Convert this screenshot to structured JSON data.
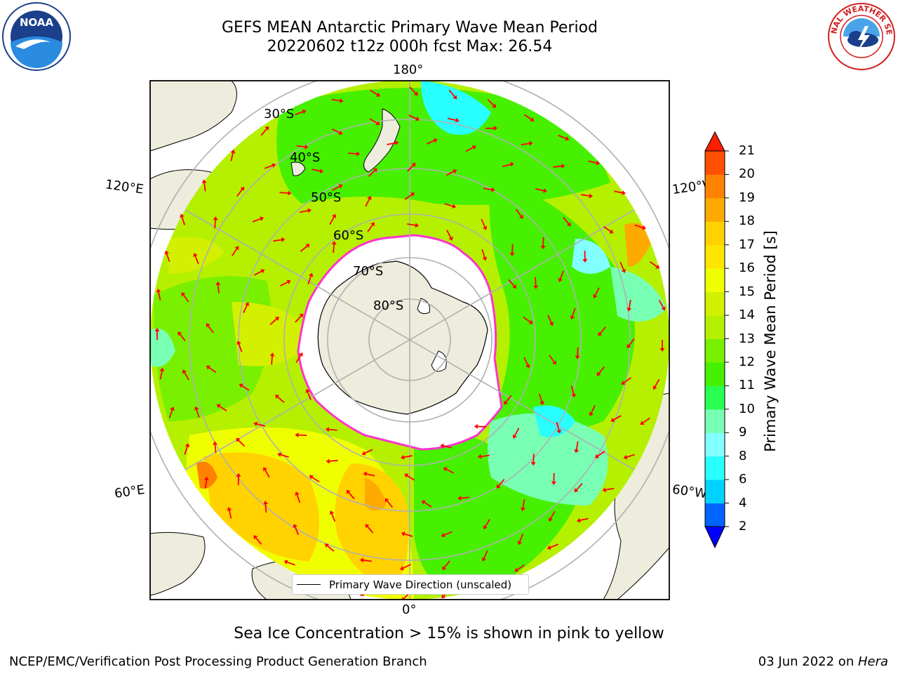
{
  "title": {
    "line1": "GEFS MEAN Antarctic Primary Wave Mean Period",
    "line2": "20220602 t12z 000h fcst   Max: 26.54"
  },
  "logos": {
    "noaa_text": "NOAA",
    "nws_text": "NATIONAL WEATHER SERVICE"
  },
  "map": {
    "projection": "south-polar-stereographic",
    "longitude_labels": {
      "top": "180°",
      "bottom": "0°",
      "upper_left": "120°E",
      "upper_right": "120°W",
      "lower_left": "60°E",
      "lower_right": "60°W"
    },
    "latitude_labels": [
      "30°S",
      "40°S",
      "50°S",
      "60°S",
      "70°S",
      "80°S"
    ],
    "legend_label": "Primary Wave Direction (unscaled)",
    "colors": {
      "land": "#eeecdc",
      "sea_ice_mask": "#ffffff",
      "ice_edge": "#ff33cc",
      "arrows": "#ff0000",
      "grid": "#b0b0b0"
    }
  },
  "colorbar": {
    "label": "Primary Wave Mean Period [s]",
    "ticks": [
      "2",
      "4",
      "6",
      "8",
      "9",
      "10",
      "11",
      "12",
      "13",
      "14",
      "15",
      "16",
      "17",
      "18",
      "19",
      "20",
      "21"
    ],
    "colors": [
      "#0064ff",
      "#00d2ff",
      "#28ffff",
      "#82ffff",
      "#78ffb4",
      "#28ff50",
      "#46f000",
      "#78f000",
      "#b4f000",
      "#d2f000",
      "#f0ff00",
      "#ffe600",
      "#ffd200",
      "#ffaa00",
      "#ff8200",
      "#ff5000"
    ],
    "under_color": "#0000ff",
    "over_color": "#ff1e00"
  },
  "caption": "Sea Ice Concentration > 15% is shown in pink to yellow",
  "footer": {
    "left": "NCEP/EMC/Verification Post Processing Product Generation Branch",
    "date": "03 Jun 2022 on ",
    "machine": "Hera"
  }
}
